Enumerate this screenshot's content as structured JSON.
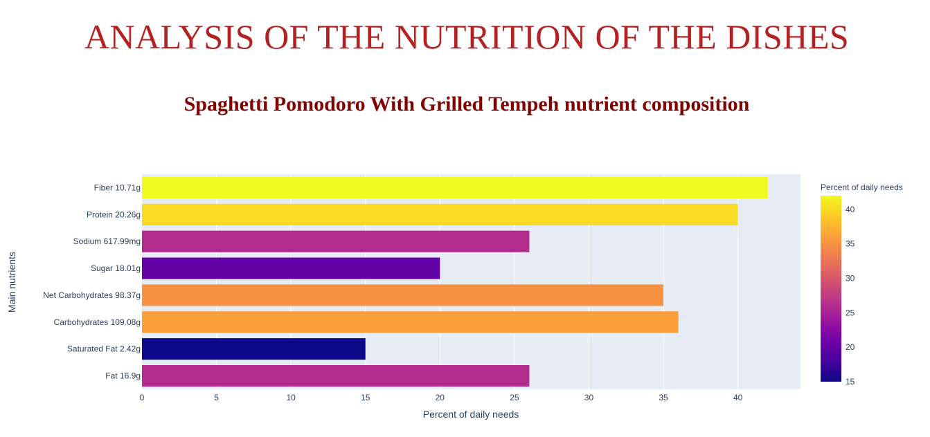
{
  "page": {
    "title": "ANALYSIS OF THE NUTRITION OF THE DISHES"
  },
  "chart_data": {
    "type": "bar",
    "orientation": "horizontal",
    "title": "Spaghetti Pomodoro With Grilled Tempeh nutrient composition",
    "xlabel": "Percent of daily needs",
    "ylabel": "Main nutrients",
    "xlim": [
      0,
      44.2
    ],
    "xticks": [
      0,
      5,
      10,
      15,
      20,
      25,
      30,
      35,
      40
    ],
    "grid": true,
    "categories": [
      "Fat 16.9g",
      "Saturated Fat 2.42g",
      "Carbohydrates 109.08g",
      "Net Carbohydrates 98.37g",
      "Sugar 18.01g",
      "Sodium 617.99mg",
      "Protein 20.26g",
      "Fiber 10.71g"
    ],
    "values": [
      26,
      15,
      36,
      35,
      20,
      26,
      40,
      42
    ],
    "colorbar": {
      "title": "Percent of daily needs",
      "range": [
        15,
        42
      ],
      "ticks": [
        15,
        20,
        25,
        30,
        35,
        40
      ],
      "colorscale": [
        "#0d0887",
        "#46039f",
        "#7201a8",
        "#9c179e",
        "#bd3786",
        "#d8576b",
        "#ed7953",
        "#fb9f3a",
        "#fdca26",
        "#f0f921"
      ]
    }
  }
}
